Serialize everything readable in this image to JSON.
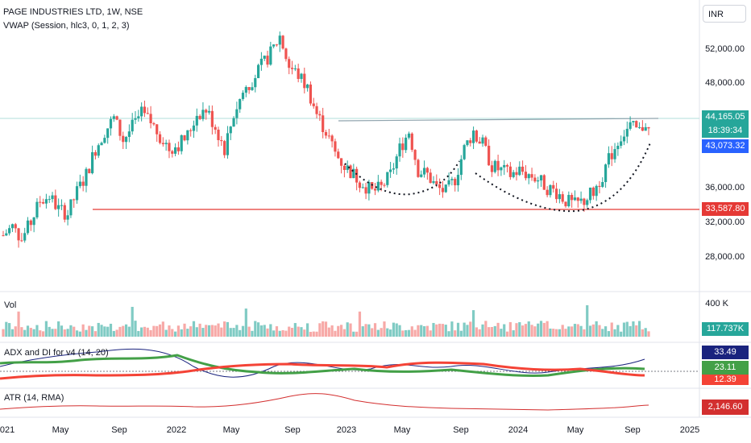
{
  "header": {
    "symbol_line": "PAGE INDUSTRIES LTD, 1W, NSE",
    "indicator_line": "VWAP (Session, hlc3, 0, 1, 2, 3)"
  },
  "currency_button": "INR",
  "price_axis": {
    "ticks": [
      "52,000.00",
      "48,000.00",
      "36,000.00",
      "32,000.00",
      "28,000.00"
    ]
  },
  "tags": {
    "last_price": "44,165.05",
    "countdown": "18:39:34",
    "vwap": "43,073.32",
    "support": "33,587.80",
    "volume": "117.737K",
    "adx": "33.49",
    "di_plus": "23.11",
    "di_minus": "12.39",
    "atr": "2,146.60"
  },
  "panes": {
    "volume_title": "Vol",
    "volume_axis_top": "400 K",
    "adx_title": "ADX and DI for v4 (14, 20)",
    "atr_title": "ATR (14, RMA)"
  },
  "time_axis": [
    "2021",
    "May",
    "Sep",
    "2022",
    "May",
    "Sep",
    "2023",
    "May",
    "Sep",
    "2024",
    "May",
    "Sep",
    "2025"
  ],
  "colors": {
    "up": "#26a69a",
    "down": "#ef5350",
    "support_line": "#e53935",
    "resistance_line": "#90a4ae",
    "adx_line": "#1a237e",
    "di_plus": "#4caf50",
    "di_minus": "#f44336",
    "atr_line": "#d32f2f",
    "last_price_tag": "#26a69a",
    "vwap_tag": "#2962ff"
  },
  "chart_data": {
    "type": "candlestick",
    "price_series": [
      30500,
      31500,
      30000,
      32000,
      34500,
      35000,
      33500,
      33000,
      35500,
      37500,
      40500,
      42500,
      44000,
      41500,
      43000,
      44500,
      43500,
      42000,
      40500,
      41000,
      42000,
      44500,
      45000,
      43000,
      40500,
      44500,
      47000,
      48500,
      50000,
      51500,
      53500,
      50000,
      49000,
      47500,
      44500,
      42500,
      40000,
      38500,
      37500,
      36500,
      35500,
      36000,
      37500,
      40500,
      42500,
      38000,
      37500,
      36000,
      35500,
      37000,
      40500,
      42500,
      41000,
      38500,
      38000,
      37500,
      38000,
      37500,
      37000,
      36000,
      35500,
      34500,
      34000,
      34500,
      35500,
      37500,
      40000,
      42000,
      43000,
      42500,
      44165
    ],
    "horizontal_levels": [
      33587.8,
      42500
    ]
  }
}
